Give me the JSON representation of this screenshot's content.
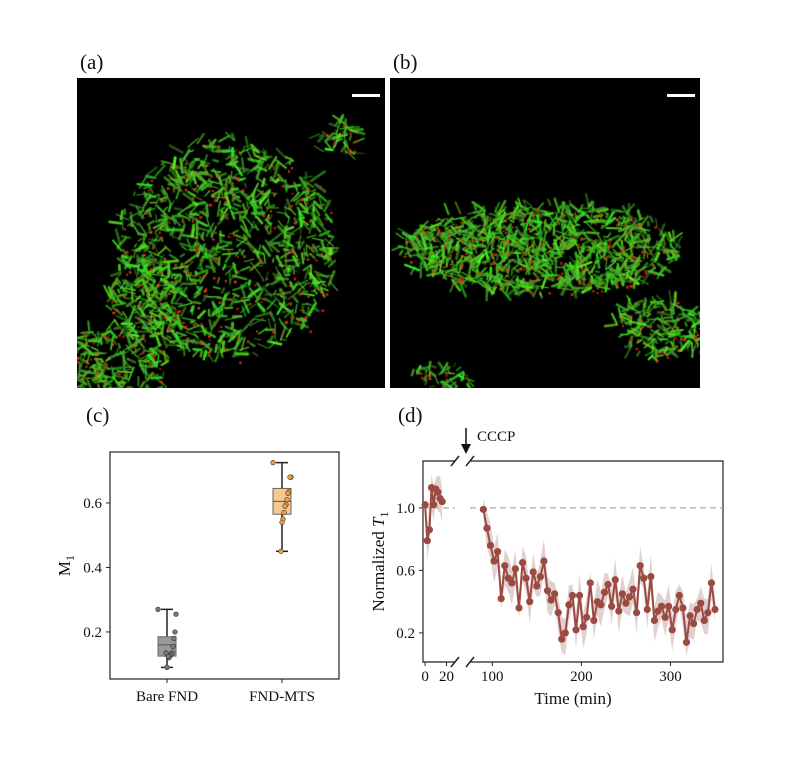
{
  "panels": {
    "a": "(a)",
    "b": "(b)",
    "c": "(c)",
    "d": "(d)"
  },
  "colors": {
    "green": "#27c61c",
    "red": "#e0251a",
    "bare_box": "#999999",
    "mts_box": "#f8c690",
    "mts_point": "#f0a040",
    "trace": "#9a4a40",
    "band": "#d6bcbc"
  },
  "chart_data": [
    {
      "type": "box",
      "panel": "c",
      "ylabel_main": "M",
      "ylabel_sub": "1",
      "categories": [
        "Bare FND",
        "FND-MTS"
      ],
      "ylim": [
        0.054,
        0.758
      ],
      "yticks": [
        0.2,
        0.4,
        0.6
      ],
      "ytick_labels": [
        "0.2",
        "0.4",
        "0.6"
      ],
      "boxes": [
        {
          "name": "Bare FND",
          "whisker_low": 0.09,
          "q1": 0.125,
          "median": 0.16,
          "q3": 0.185,
          "whisker_high": 0.27,
          "points": [
            0.27,
            0.255,
            0.2,
            0.18,
            0.155,
            0.135,
            0.13,
            0.125,
            0.12,
            0.125,
            0.09,
            0.135
          ]
        },
        {
          "name": "FND-MTS",
          "whisker_low": 0.45,
          "q1": 0.565,
          "median": 0.605,
          "q3": 0.645,
          "whisker_high": 0.725,
          "points": [
            0.725,
            0.68,
            0.68,
            0.635,
            0.63,
            0.61,
            0.595,
            0.59,
            0.57,
            0.55,
            0.54,
            0.45
          ]
        }
      ]
    },
    {
      "type": "line",
      "panel": "d",
      "xlabel": "Time (min)",
      "ylabel_main": "Normalized ",
      "ylabel_italic": "T",
      "ylabel_sub": "1",
      "annotation": "CCCP",
      "ylim": [
        0.014,
        1.3
      ],
      "yticks": [
        0.2,
        0.6,
        1.0
      ],
      "ytick_labels": [
        "0.2",
        "0.6",
        "1.0"
      ],
      "xlim_segments": [
        [
          -2,
          28
        ],
        [
          75,
          359
        ]
      ],
      "xticks": [
        0,
        20,
        100,
        200,
        300
      ],
      "xtick_labels": [
        "0",
        "20",
        "100",
        "200",
        "300"
      ],
      "reference_line": 1.0,
      "band_halfwidth": 0.07,
      "series": [
        {
          "name": "before",
          "x": [
            0,
            2,
            4,
            6,
            8,
            10,
            12,
            14,
            16
          ],
          "y": [
            1.02,
            0.79,
            0.86,
            1.13,
            1.02,
            1.12,
            1.1,
            1.06,
            1.04
          ]
        },
        {
          "name": "after",
          "x": [
            90,
            94,
            98,
            102,
            106,
            110,
            114,
            118,
            122,
            126,
            130,
            134,
            138,
            142,
            146,
            150,
            154,
            158,
            162,
            166,
            170,
            174,
            178,
            182,
            186,
            190,
            194,
            198,
            202,
            206,
            210,
            214,
            218,
            222,
            226,
            230,
            234,
            238,
            242,
            246,
            250,
            254,
            258,
            262,
            266,
            270,
            274,
            278,
            282,
            286,
            290,
            294,
            298,
            302,
            306,
            310,
            314,
            318,
            322,
            326,
            330,
            334,
            338,
            342,
            346,
            350
          ],
          "y": [
            0.99,
            0.87,
            0.76,
            0.66,
            0.72,
            0.42,
            0.63,
            0.55,
            0.52,
            0.61,
            0.36,
            0.65,
            0.55,
            0.4,
            0.59,
            0.5,
            0.56,
            0.66,
            0.47,
            0.41,
            0.45,
            0.33,
            0.16,
            0.2,
            0.38,
            0.44,
            0.22,
            0.44,
            0.24,
            0.3,
            0.52,
            0.28,
            0.4,
            0.38,
            0.46,
            0.51,
            0.37,
            0.54,
            0.34,
            0.45,
            0.39,
            0.43,
            0.48,
            0.33,
            0.63,
            0.55,
            0.35,
            0.56,
            0.28,
            0.34,
            0.37,
            0.3,
            0.37,
            0.22,
            0.35,
            0.44,
            0.36,
            0.14,
            0.31,
            0.26,
            0.35,
            0.39,
            0.28,
            0.33,
            0.52,
            0.35
          ]
        }
      ]
    }
  ]
}
